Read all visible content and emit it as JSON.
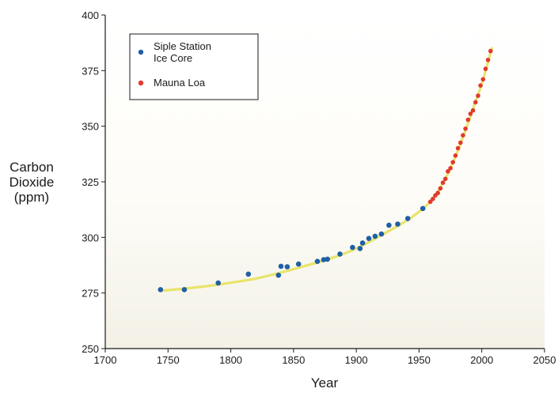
{
  "chart_data": {
    "type": "scatter",
    "title": "",
    "xlabel": "Year",
    "ylabel": [
      "Carbon",
      "Dioxide",
      "(ppm)"
    ],
    "xlim": [
      1700,
      2050
    ],
    "ylim": [
      250,
      400
    ],
    "xticks": [
      1700,
      1750,
      1800,
      1850,
      1900,
      1950,
      2000,
      2050
    ],
    "yticks": [
      250,
      275,
      300,
      325,
      350,
      375,
      400
    ],
    "grid": false,
    "legend": {
      "placement": "top-left",
      "entries": [
        {
          "lines": [
            "Siple Station",
            "Ice Core"
          ],
          "color": "#1f5fa6"
        },
        {
          "lines": [
            "Mauna Loa"
          ],
          "color": "#e03a2b"
        }
      ]
    },
    "series": [
      {
        "name": "Siple Station Ice Core",
        "color": "#1f5fa6",
        "points": [
          [
            1744,
            276.5
          ],
          [
            1763,
            276.5
          ],
          [
            1790,
            279.5
          ],
          [
            1814,
            283.5
          ],
          [
            1838,
            283.0
          ],
          [
            1840,
            287.0
          ],
          [
            1845,
            286.8
          ],
          [
            1854,
            288.0
          ],
          [
            1869,
            289.2
          ],
          [
            1874,
            290.0
          ],
          [
            1877,
            290.2
          ],
          [
            1887,
            292.5
          ],
          [
            1897,
            295.5
          ],
          [
            1903,
            295.0
          ],
          [
            1905,
            297.5
          ],
          [
            1910,
            299.5
          ],
          [
            1915,
            300.5
          ],
          [
            1920,
            301.5
          ],
          [
            1926,
            305.5
          ],
          [
            1933,
            306.0
          ],
          [
            1941,
            308.5
          ],
          [
            1953,
            313.0
          ]
        ]
      },
      {
        "name": "Mauna Loa",
        "color": "#e03a2b",
        "points": [
          [
            1959,
            316.0
          ],
          [
            1961,
            317.3
          ],
          [
            1963,
            318.9
          ],
          [
            1965,
            320.0
          ],
          [
            1967,
            322.0
          ],
          [
            1969,
            324.6
          ],
          [
            1971,
            326.3
          ],
          [
            1973,
            329.7
          ],
          [
            1975,
            331.1
          ],
          [
            1977,
            333.8
          ],
          [
            1979,
            336.8
          ],
          [
            1981,
            340.1
          ],
          [
            1983,
            342.6
          ],
          [
            1985,
            345.9
          ],
          [
            1987,
            348.9
          ],
          [
            1989,
            352.9
          ],
          [
            1991,
            355.6
          ],
          [
            1993,
            357.1
          ],
          [
            1995,
            360.8
          ],
          [
            1997,
            363.7
          ],
          [
            1999,
            368.3
          ],
          [
            2001,
            371.1
          ],
          [
            2003,
            375.8
          ],
          [
            2005,
            379.8
          ],
          [
            2007,
            383.8
          ]
        ]
      }
    ],
    "fit_curve": {
      "color": "#e8e46a",
      "points": [
        [
          1744,
          276.0
        ],
        [
          1760,
          276.8
        ],
        [
          1780,
          278.0
        ],
        [
          1800,
          279.6
        ],
        [
          1820,
          281.5
        ],
        [
          1840,
          284.2
        ],
        [
          1860,
          287.3
        ],
        [
          1880,
          290.6
        ],
        [
          1900,
          295.0
        ],
        [
          1920,
          301.0
        ],
        [
          1940,
          307.5
        ],
        [
          1950,
          311.5
        ],
        [
          1958,
          315.5
        ],
        [
          1965,
          320.5
        ],
        [
          1975,
          331.0
        ],
        [
          1985,
          345.0
        ],
        [
          1995,
          361.0
        ],
        [
          2000,
          369.0
        ],
        [
          2005,
          379.0
        ],
        [
          2008,
          385.0
        ]
      ]
    }
  }
}
